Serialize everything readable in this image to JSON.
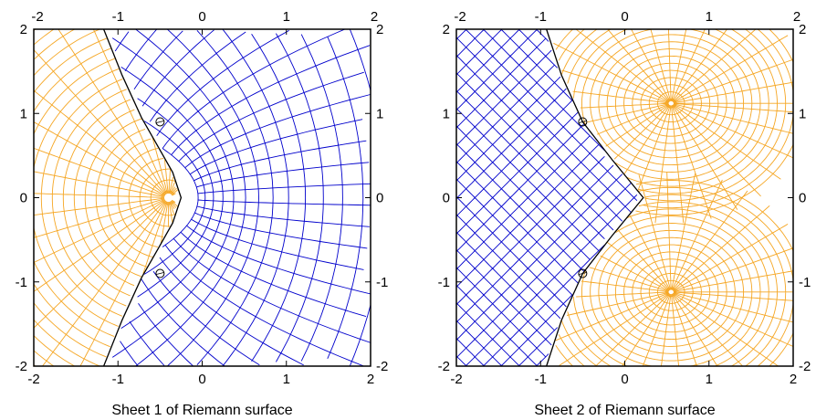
{
  "chart_data": [
    {
      "type": "contour-grid",
      "title": "",
      "caption": "Sheet 1 of Riemann surface",
      "xlim": [
        -2,
        2
      ],
      "ylim": [
        -2,
        2
      ],
      "xticks": [
        "-2",
        "-1",
        "0",
        "1",
        "2"
      ],
      "yticks": [
        "2",
        "1",
        "0",
        "-1",
        "-2"
      ],
      "tick_labels_on": [
        "bottom",
        "top",
        "left",
        "right"
      ],
      "grid": false,
      "boundary_curve": [
        [
          -1.17,
          2
        ],
        [
          -0.95,
          1.45
        ],
        [
          -0.72,
          0.95
        ],
        [
          -0.52,
          0.6
        ],
        [
          -0.35,
          0.3
        ],
        [
          -0.25,
          0
        ],
        [
          -0.35,
          -0.3
        ],
        [
          -0.52,
          -0.6
        ],
        [
          -0.72,
          -0.95
        ],
        [
          -0.95,
          -1.45
        ],
        [
          -1.17,
          -2
        ]
      ],
      "branch_points": [
        [
          -0.5,
          0.9
        ],
        [
          -0.5,
          -0.9
        ]
      ],
      "series": [
        {
          "region": "right of boundary",
          "color": "#0000cc"
        },
        {
          "region": "left of boundary",
          "color": "#f5a623"
        }
      ]
    },
    {
      "type": "contour-grid",
      "title": "",
      "caption": "Sheet 2 of Riemann surface",
      "xlim": [
        -2,
        2
      ],
      "ylim": [
        -2,
        2
      ],
      "xticks": [
        "-2",
        "-1",
        "0",
        "1",
        "2"
      ],
      "yticks": [
        "2",
        "1",
        "0",
        "-1",
        "-2"
      ],
      "tick_labels_on": [
        "bottom",
        "top",
        "left",
        "right"
      ],
      "grid": false,
      "boundary_curve": [
        [
          -0.93,
          2
        ],
        [
          -0.75,
          1.45
        ],
        [
          -0.5,
          0.9
        ],
        [
          -0.15,
          0.45
        ],
        [
          0.22,
          0
        ],
        [
          -0.15,
          -0.45
        ],
        [
          -0.5,
          -0.9
        ],
        [
          -0.75,
          -1.45
        ],
        [
          -0.93,
          -2
        ]
      ],
      "branch_points": [
        [
          -0.5,
          0.9
        ],
        [
          -0.5,
          -0.9
        ]
      ],
      "singular_points": [
        [
          0.55,
          1.12
        ],
        [
          0.55,
          -1.12
        ]
      ],
      "series": [
        {
          "region": "left of boundary",
          "color": "#0000cc"
        },
        {
          "region": "right of boundary",
          "color": "#f5a623"
        }
      ]
    }
  ]
}
